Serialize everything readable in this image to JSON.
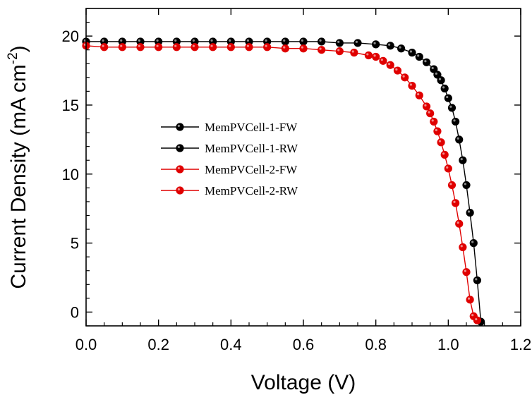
{
  "chart_data": {
    "type": "line",
    "title": "",
    "xlabel": "Voltage (V)",
    "ylabel_main": "Current Density (mA cm",
    "ylabel_sup": "-2",
    "ylabel_close": ")",
    "xlim": [
      0.0,
      1.2
    ],
    "ylim": [
      -1.0,
      22.0
    ],
    "xticks": [
      0.0,
      0.2,
      0.4,
      0.6,
      0.8,
      1.0,
      1.2
    ],
    "xtick_labels": [
      "0.0",
      "0.2",
      "0.4",
      "0.6",
      "0.8",
      "1.0",
      "1.2"
    ],
    "yticks": [
      0,
      5,
      10,
      15,
      20
    ],
    "ytick_labels": [
      "0",
      "5",
      "10",
      "15",
      "20"
    ],
    "grid": false,
    "legend_position": "center-left",
    "legend": [
      {
        "name": "MemPVCell-1-FW",
        "color": "#000000"
      },
      {
        "name": "MemPVCell-1-RW",
        "color": "#000000"
      },
      {
        "name": "MemPVCell-2-FW",
        "color": "#e00000"
      },
      {
        "name": "MemPVCell-2-RW",
        "color": "#e00000"
      }
    ],
    "series": [
      {
        "name": "MemPVCell-1",
        "color": "#000000",
        "x": [
          0.0,
          0.05,
          0.1,
          0.15,
          0.2,
          0.25,
          0.3,
          0.35,
          0.4,
          0.45,
          0.5,
          0.55,
          0.6,
          0.65,
          0.7,
          0.75,
          0.8,
          0.84,
          0.87,
          0.9,
          0.92,
          0.94,
          0.96,
          0.97,
          0.98,
          0.99,
          1.0,
          1.01,
          1.02,
          1.03,
          1.04,
          1.05,
          1.06,
          1.07,
          1.08,
          1.09
        ],
        "y": [
          19.6,
          19.6,
          19.6,
          19.6,
          19.6,
          19.6,
          19.6,
          19.6,
          19.6,
          19.6,
          19.6,
          19.6,
          19.6,
          19.6,
          19.5,
          19.5,
          19.4,
          19.3,
          19.1,
          18.8,
          18.5,
          18.1,
          17.6,
          17.2,
          16.8,
          16.2,
          15.5,
          14.8,
          13.8,
          12.5,
          11.0,
          9.2,
          7.2,
          5.0,
          2.3,
          -0.7
        ]
      },
      {
        "name": "MemPVCell-2",
        "color": "#e00000",
        "x": [
          0.0,
          0.05,
          0.1,
          0.15,
          0.2,
          0.25,
          0.3,
          0.35,
          0.4,
          0.45,
          0.5,
          0.55,
          0.6,
          0.65,
          0.7,
          0.74,
          0.78,
          0.8,
          0.82,
          0.84,
          0.86,
          0.88,
          0.9,
          0.92,
          0.94,
          0.95,
          0.96,
          0.97,
          0.98,
          0.99,
          1.0,
          1.01,
          1.02,
          1.03,
          1.04,
          1.05,
          1.06,
          1.07,
          1.08
        ],
        "y": [
          19.3,
          19.2,
          19.2,
          19.2,
          19.2,
          19.2,
          19.2,
          19.2,
          19.2,
          19.2,
          19.2,
          19.1,
          19.1,
          19.0,
          18.9,
          18.8,
          18.6,
          18.5,
          18.2,
          17.9,
          17.5,
          17.0,
          16.4,
          15.7,
          14.9,
          14.4,
          13.8,
          13.1,
          12.3,
          11.4,
          10.4,
          9.2,
          7.9,
          6.4,
          4.7,
          2.9,
          0.9,
          -0.3,
          -0.6
        ]
      }
    ]
  }
}
